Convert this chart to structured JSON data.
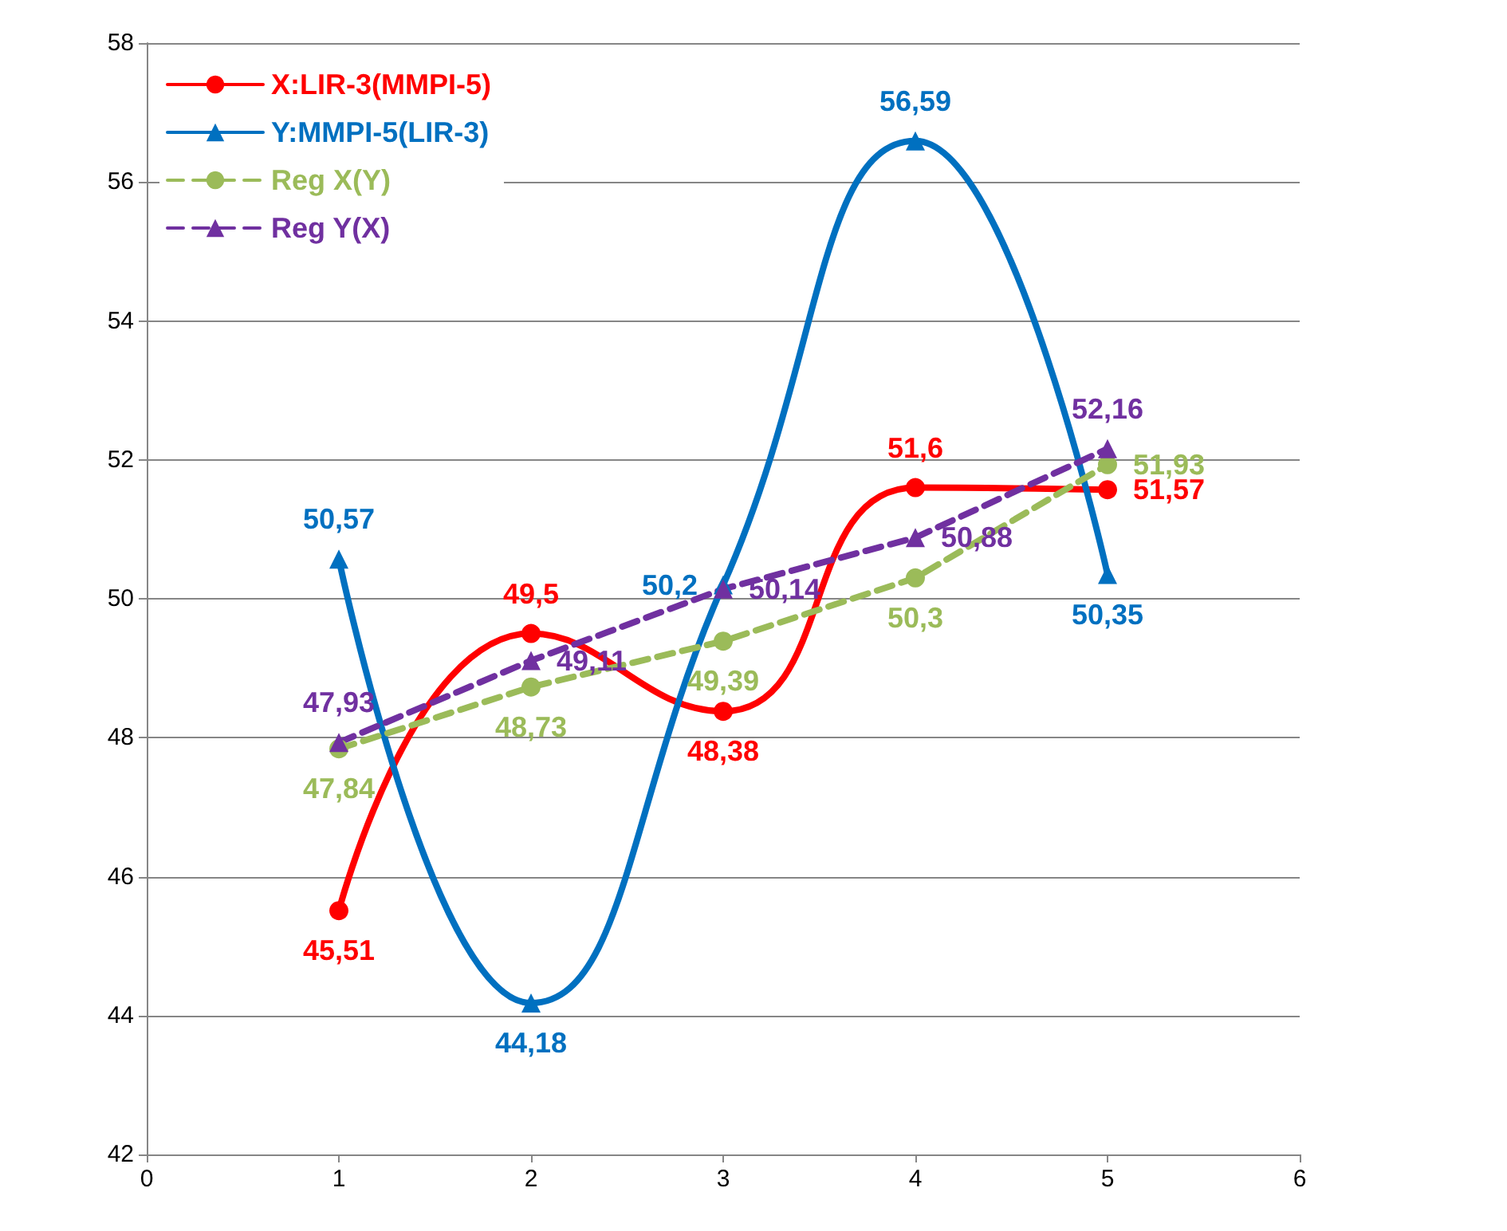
{
  "chart_data": {
    "type": "line",
    "x": [
      1,
      2,
      3,
      4,
      5
    ],
    "xlim": [
      0,
      6
    ],
    "xticks": [
      0,
      1,
      2,
      3,
      4,
      5,
      6
    ],
    "ylim": [
      42,
      58
    ],
    "yticks": [
      42,
      44,
      46,
      48,
      50,
      52,
      54,
      56,
      58
    ],
    "grid": "y",
    "legend": "top left",
    "series": [
      {
        "name": "X:LIR-3(MMPI-5)",
        "color": "#ff0000",
        "marker": "circle",
        "line_style": "solid",
        "values": [
          45.51,
          49.5,
          48.38,
          51.6,
          51.57
        ],
        "value_labels": [
          "45,51",
          "49,5",
          "48,38",
          "51,6",
          "51,57"
        ]
      },
      {
        "name": "Y:MMPI-5(LIR-3)",
        "color": "#0070c0",
        "marker": "triangle",
        "line_style": "solid",
        "values": [
          50.57,
          44.18,
          50.2,
          56.59,
          50.35
        ],
        "value_labels": [
          "50,57",
          "44,18",
          "50,2",
          "56,59",
          "50,35"
        ]
      },
      {
        "name": "Reg X(Y)",
        "color": "#9bbb59",
        "marker": "circle",
        "line_style": "dashed",
        "values": [
          47.84,
          48.73,
          49.39,
          50.3,
          51.93
        ],
        "value_labels": [
          "47,84",
          "48,73",
          "49,39",
          "50,3",
          "51,93"
        ]
      },
      {
        "name": "Reg Y(X)",
        "color": "#7030a0",
        "marker": "triangle",
        "line_style": "dashed",
        "values": [
          47.93,
          49.11,
          50.14,
          50.88,
          52.16
        ],
        "value_labels": [
          "47,93",
          "49,11",
          "50,14",
          "50,88",
          "52,16"
        ]
      }
    ]
  }
}
